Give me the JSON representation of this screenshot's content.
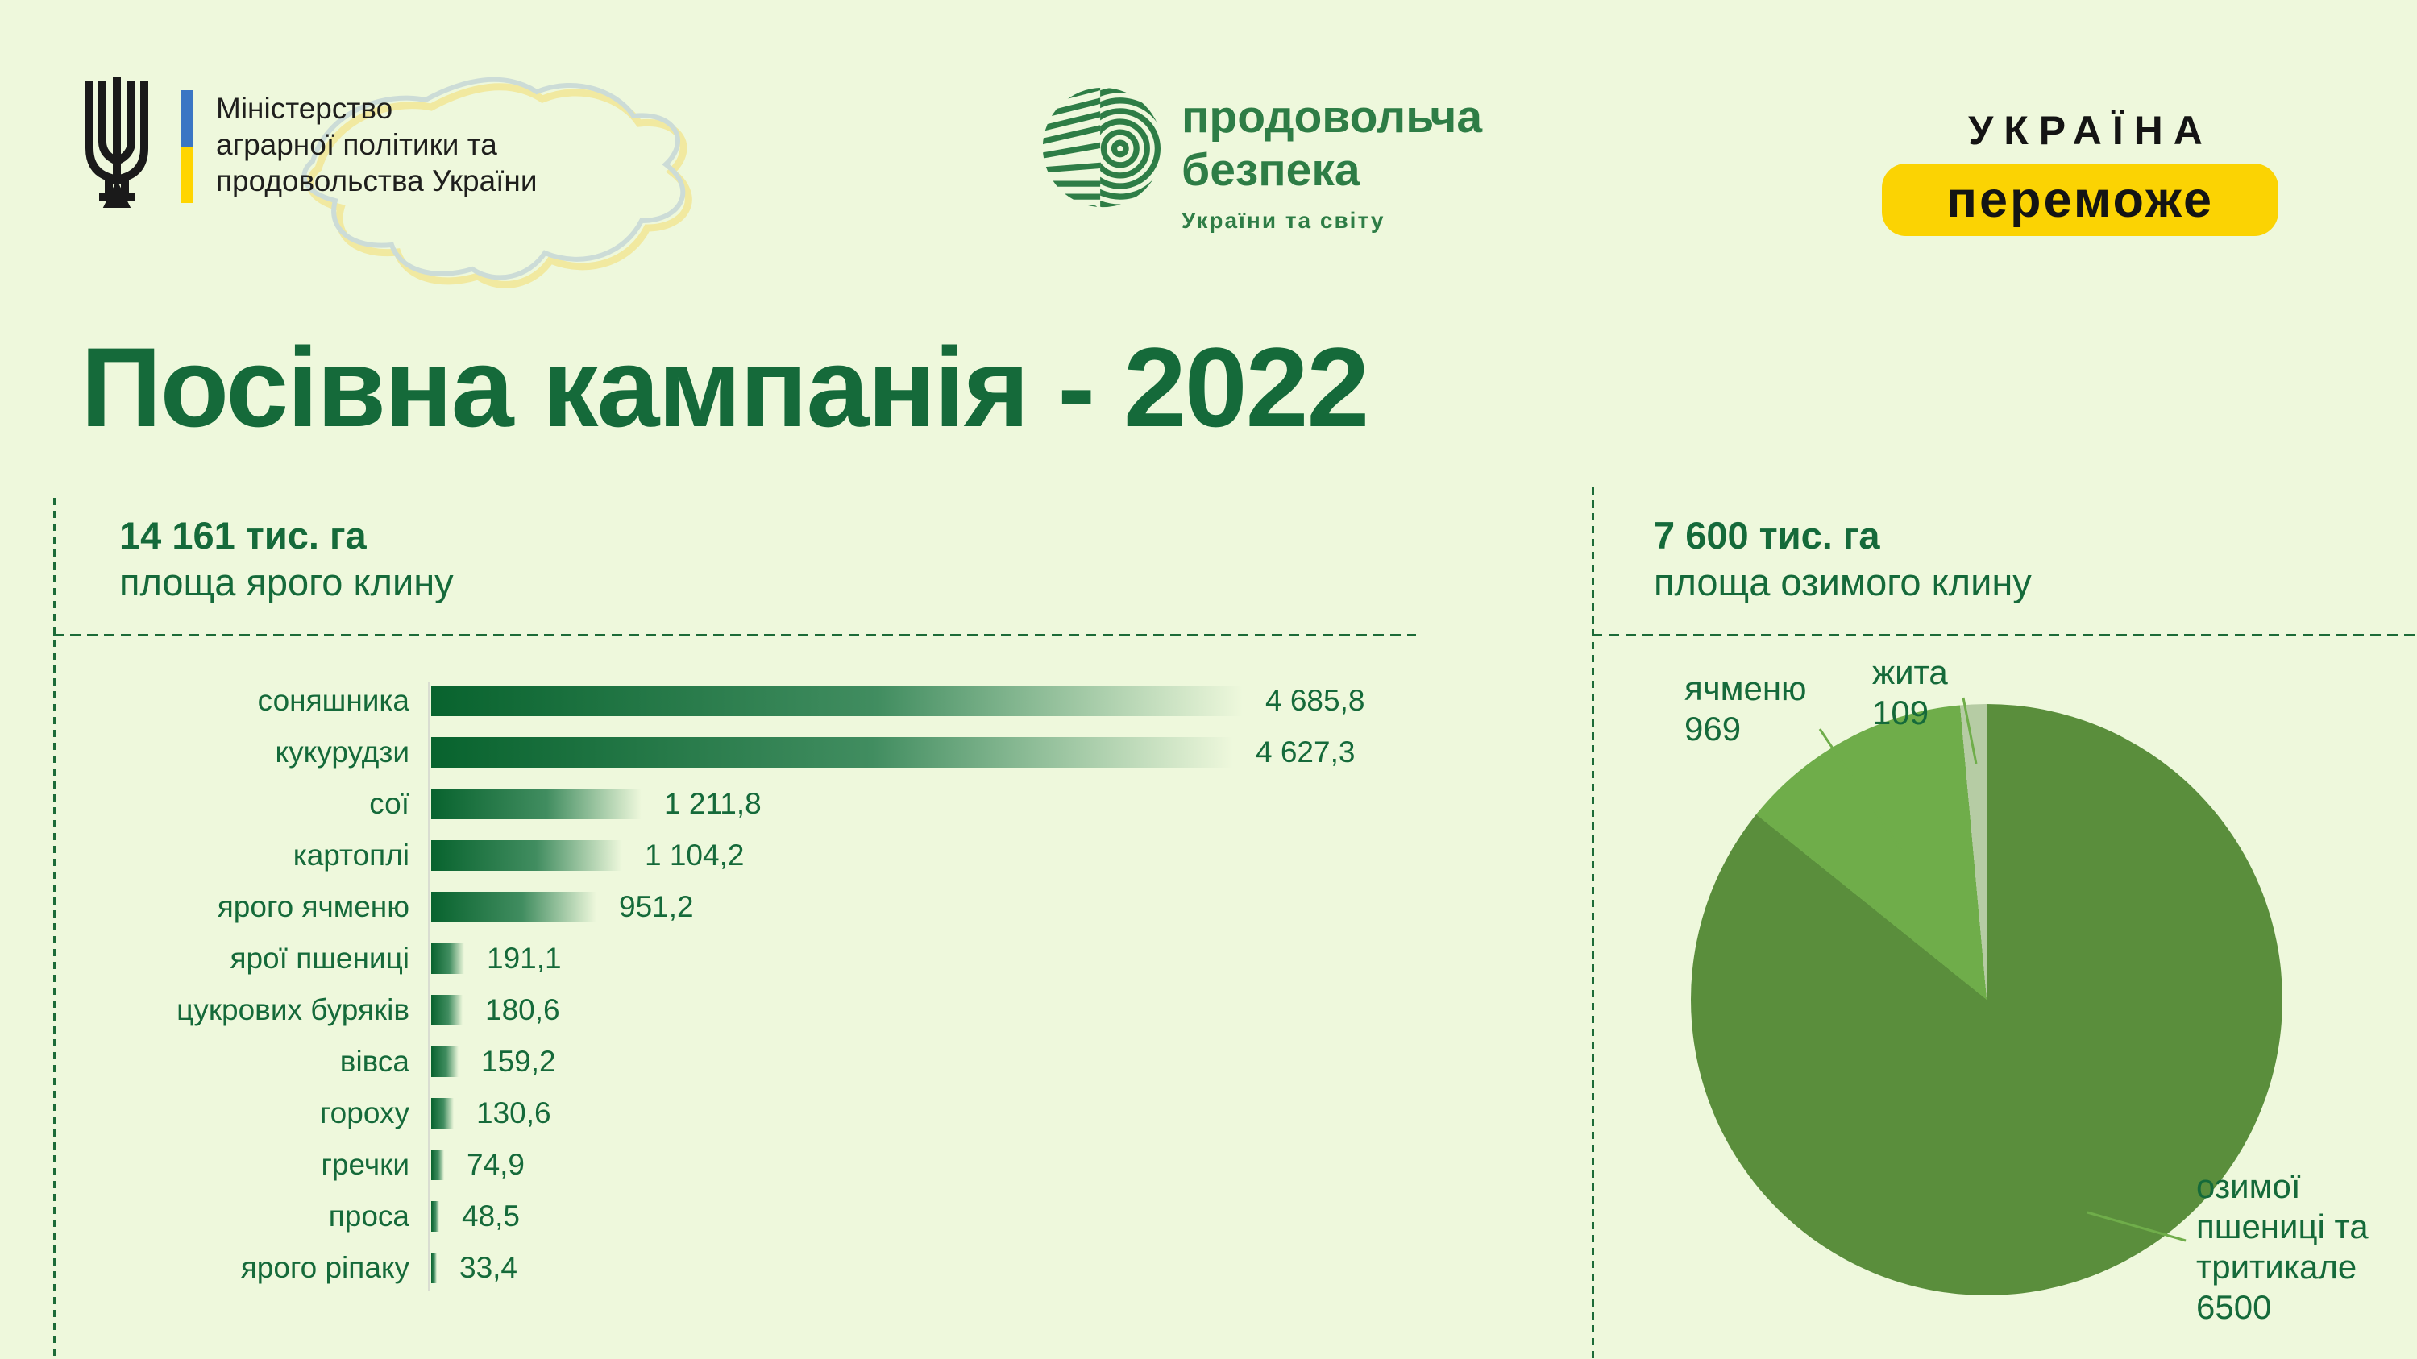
{
  "page": {
    "background": "#eef8dc",
    "accent_green": "#156a3a"
  },
  "header": {
    "ministry": {
      "line1": "Міністерство",
      "line2": "аграрної політики та",
      "line3": "продовольства України",
      "flag_blue": "#3a76c4",
      "flag_yellow": "#ffd500"
    },
    "food_security": {
      "title_line1": "продовольча",
      "title_line2": "безпека",
      "subtitle": "України та світу",
      "green": "#2e7d46"
    },
    "ukraine_will_win": {
      "line1": "УКРАЇНА",
      "line2": "переможе",
      "pill_yellow": "#fbd303"
    }
  },
  "title": "Посівна кампанія - 2022",
  "spring_section": {
    "total": "14 161 тис. га",
    "label": "площа ярого клину"
  },
  "winter_section": {
    "total": "7 600 тис. га",
    "label": "площа озимого клину"
  },
  "chart_data": [
    {
      "type": "bar",
      "orientation": "horizontal",
      "title": "площа ярого клину",
      "total_label": "14 161 тис. га",
      "units": "тис. га",
      "categories": [
        "соняшника",
        "кукурудзи",
        "сої",
        "картоплі",
        "ярого ячменю",
        "ярої пшениці",
        "цукрових буряків",
        "вівса",
        "гороху",
        "гречки",
        "проса",
        "ярого ріпаку"
      ],
      "values": [
        4685.8,
        4627.3,
        1211.8,
        1104.2,
        951.2,
        191.1,
        180.6,
        159.2,
        130.6,
        74.9,
        48.5,
        33.4
      ],
      "value_labels": [
        "4 685,8",
        "4 627,3",
        "1 211,8",
        "1 104,2",
        "951,2",
        "191,1",
        "180,6",
        "159,2",
        "130,6",
        "74,9",
        "48,5",
        "33,4"
      ],
      "xlim": [
        0,
        4686
      ],
      "grid": false,
      "bar_color_start": "#08632e",
      "bar_color_mid": "#418d60"
    },
    {
      "type": "pie",
      "title": "площа озимого клину",
      "total_label": "7 600 тис. га",
      "units": "тис. га",
      "direction": "clockwise",
      "start_angle_deg": 0,
      "slices": [
        {
          "label": "озимої пшениці та тритикале",
          "value": 6500,
          "value_label": "6500",
          "color": "#5a8e3c"
        },
        {
          "label": "ячменю",
          "value": 969,
          "value_label": "969",
          "color": "#6fad4a"
        },
        {
          "label": "жита",
          "value": 109,
          "value_label": "109",
          "color": "#b6cca4"
        }
      ],
      "leader_line_color": "#6fad4a"
    }
  ]
}
